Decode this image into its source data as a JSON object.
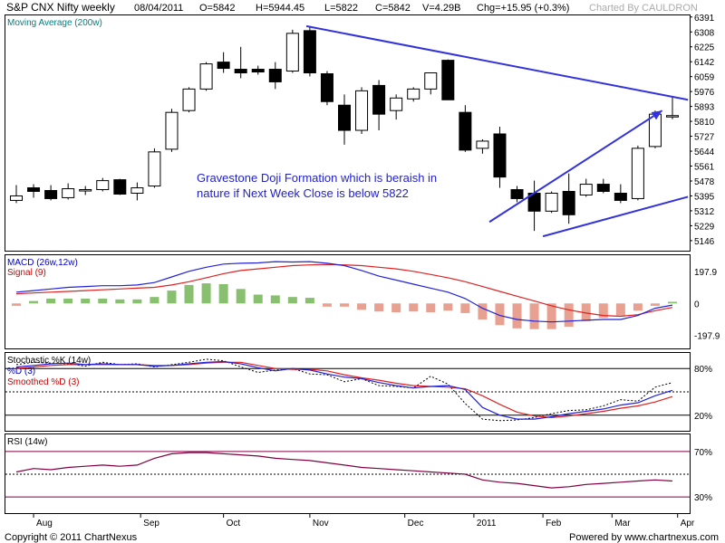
{
  "header": {
    "title": "S&P CNX Nifty weekly",
    "date": "08/04/2011",
    "open": "O=5842",
    "high": "H=5944.45",
    "low": "L=5822",
    "close": "C=5842",
    "volume": "V=4.29B",
    "change": "Chg=+15.95 (+0.3%)",
    "charted_by": "Charted By CAULDRON"
  },
  "footer": {
    "copyright": "Copyright © 2011 ChartNexus",
    "powered_by": "Powered by www.chartnexus.com"
  },
  "annotation": {
    "line1": "Gravestone Doji Formation which is beraish in",
    "line2": "nature if Next Week Close is below 5822"
  },
  "colors": {
    "trendline": "#3333dd",
    "macd": "#2222dd",
    "signal": "#dd2222",
    "hist_pos": "#88c070",
    "hist_neg": "#e8a090",
    "rsi": "#800040",
    "label_blue": "#0000cc",
    "label_red": "#cc0000",
    "legend_teal": "#008080"
  },
  "chart_data": [
    {
      "type": "candlestick",
      "title": "S&P CNX Nifty weekly",
      "legend": "Moving Average (200w)",
      "y_ticks": [
        "6391",
        "6308",
        "6225",
        "6142",
        "6059",
        "5976",
        "5893",
        "5810",
        "5727",
        "5644",
        "5561",
        "5478",
        "5395",
        "5312",
        "5229",
        "5146"
      ],
      "ylim": [
        5090,
        6400
      ],
      "x_ticks": [
        "Aug",
        "Sep",
        "Oct",
        "Nov",
        "Dec",
        "2011",
        "Feb",
        "Mar",
        "Apr"
      ],
      "candles": [
        {
          "o": 5370,
          "h": 5455,
          "l": 5355,
          "c": 5395
        },
        {
          "o": 5440,
          "h": 5460,
          "l": 5385,
          "c": 5420
        },
        {
          "o": 5425,
          "h": 5455,
          "l": 5370,
          "c": 5380
        },
        {
          "o": 5385,
          "h": 5465,
          "l": 5375,
          "c": 5435
        },
        {
          "o": 5430,
          "h": 5450,
          "l": 5400,
          "c": 5430
        },
        {
          "o": 5430,
          "h": 5495,
          "l": 5420,
          "c": 5480
        },
        {
          "o": 5485,
          "h": 5490,
          "l": 5400,
          "c": 5405
        },
        {
          "o": 5410,
          "h": 5470,
          "l": 5370,
          "c": 5440
        },
        {
          "o": 5450,
          "h": 5660,
          "l": 5440,
          "c": 5640
        },
        {
          "o": 5655,
          "h": 5880,
          "l": 5640,
          "c": 5860
        },
        {
          "o": 5870,
          "h": 6000,
          "l": 5860,
          "c": 5990
        },
        {
          "o": 5990,
          "h": 6140,
          "l": 5980,
          "c": 6130
        },
        {
          "o": 6140,
          "h": 6195,
          "l": 6080,
          "c": 6105
        },
        {
          "o": 6100,
          "h": 6225,
          "l": 6050,
          "c": 6080
        },
        {
          "o": 6100,
          "h": 6120,
          "l": 6070,
          "c": 6085
        },
        {
          "o": 6100,
          "h": 6140,
          "l": 5990,
          "c": 6030
        },
        {
          "o": 6090,
          "h": 6320,
          "l": 6080,
          "c": 6300
        },
        {
          "o": 6315,
          "h": 6340,
          "l": 6060,
          "c": 6080
        },
        {
          "o": 6075,
          "h": 6090,
          "l": 5900,
          "c": 5920
        },
        {
          "o": 5900,
          "h": 5960,
          "l": 5680,
          "c": 5760
        },
        {
          "o": 5760,
          "h": 6000,
          "l": 5740,
          "c": 5980
        },
        {
          "o": 6010,
          "h": 6040,
          "l": 5760,
          "c": 5850
        },
        {
          "o": 5870,
          "h": 5960,
          "l": 5820,
          "c": 5940
        },
        {
          "o": 5935,
          "h": 6000,
          "l": 5920,
          "c": 5990
        },
        {
          "o": 5990,
          "h": 6080,
          "l": 5960,
          "c": 6080
        },
        {
          "o": 6150,
          "h": 6155,
          "l": 5930,
          "c": 5930
        },
        {
          "o": 5860,
          "h": 5900,
          "l": 5640,
          "c": 5650
        },
        {
          "o": 5660,
          "h": 5710,
          "l": 5630,
          "c": 5700
        },
        {
          "o": 5740,
          "h": 5780,
          "l": 5440,
          "c": 5500
        },
        {
          "o": 5430,
          "h": 5450,
          "l": 5360,
          "c": 5380
        },
        {
          "o": 5410,
          "h": 5480,
          "l": 5200,
          "c": 5310
        },
        {
          "o": 5310,
          "h": 5420,
          "l": 5300,
          "c": 5410
        },
        {
          "o": 5420,
          "h": 5520,
          "l": 5240,
          "c": 5290
        },
        {
          "o": 5400,
          "h": 5490,
          "l": 5390,
          "c": 5460
        },
        {
          "o": 5460,
          "h": 5490,
          "l": 5410,
          "c": 5420
        },
        {
          "o": 5410,
          "h": 5460,
          "l": 5355,
          "c": 5370
        },
        {
          "o": 5380,
          "h": 5675,
          "l": 5370,
          "c": 5660
        },
        {
          "o": 5670,
          "h": 5870,
          "l": 5660,
          "c": 5850
        },
        {
          "o": 5842,
          "h": 5944.45,
          "l": 5822,
          "c": 5842
        }
      ],
      "trendlines": [
        {
          "label": "resistance",
          "from": {
            "i": 16.8,
            "v": 6340
          },
          "to": {
            "i": 38.9,
            "v": 5930
          }
        },
        {
          "label": "support",
          "from": {
            "i": 30.5,
            "v": 5170
          },
          "to": {
            "i": 38.9,
            "v": 5390
          }
        },
        {
          "label": "channel",
          "from": {
            "i": 27.4,
            "v": 5250
          },
          "to": {
            "i": 37.4,
            "v": 5870
          }
        }
      ]
    },
    {
      "type": "line",
      "title": "MACD (26w,12w)",
      "series_names": [
        "MACD (26w,12w)",
        "Signal (9)"
      ],
      "y_ticks": [
        "197.9",
        "0",
        "-197.9"
      ],
      "ylim": [
        -280,
        300
      ],
      "macd": [
        70,
        80,
        90,
        100,
        105,
        110,
        110,
        115,
        130,
        165,
        200,
        225,
        245,
        250,
        252,
        260,
        258,
        260,
        250,
        235,
        205,
        170,
        145,
        120,
        95,
        70,
        30,
        -30,
        -75,
        -100,
        -110,
        -115,
        -110,
        -105,
        -100,
        -100,
        -75,
        -30,
        -10
      ],
      "signal": [
        60,
        65,
        70,
        75,
        80,
        85,
        90,
        95,
        100,
        115,
        135,
        160,
        185,
        205,
        215,
        225,
        235,
        240,
        242,
        240,
        235,
        225,
        215,
        200,
        180,
        160,
        135,
        105,
        75,
        45,
        15,
        -15,
        -40,
        -60,
        -75,
        -80,
        -70,
        -45,
        -25
      ],
      "histogram": [
        -15,
        15,
        30,
        30,
        30,
        30,
        25,
        25,
        40,
        80,
        115,
        125,
        120,
        90,
        55,
        50,
        40,
        35,
        -20,
        -20,
        -40,
        -50,
        -55,
        -50,
        -55,
        -45,
        -60,
        -100,
        -135,
        -155,
        -160,
        -160,
        -145,
        -110,
        -90,
        -75,
        -45,
        -15,
        10
      ]
    },
    {
      "type": "line",
      "title": "Stochastic %K (14w)",
      "series_names": [
        "Stochastic %K (14w)",
        "%D (3)",
        "Smoothed %D (3)"
      ],
      "y_ticks": [
        "80%",
        "20%"
      ],
      "ylim": [
        0,
        100
      ],
      "k": [
        85,
        88,
        87,
        86,
        83,
        88,
        85,
        86,
        82,
        85,
        88,
        92,
        90,
        82,
        75,
        78,
        80,
        73,
        72,
        63,
        67,
        58,
        57,
        55,
        70,
        60,
        35,
        15,
        13,
        14,
        17,
        22,
        26,
        27,
        32,
        40,
        38,
        56,
        62
      ],
      "d": [
        82,
        84,
        86,
        87,
        85,
        86,
        85,
        85,
        83,
        84,
        86,
        88,
        89,
        86,
        81,
        77,
        80,
        78,
        73,
        69,
        67,
        62,
        58,
        55,
        57,
        58,
        53,
        30,
        20,
        15,
        15,
        18,
        22,
        25,
        28,
        33,
        36,
        45,
        52
      ],
      "smoothed_d": [
        80,
        82,
        84,
        85,
        85,
        85,
        85,
        85,
        84,
        84,
        85,
        87,
        88,
        88,
        84,
        80,
        79,
        79,
        77,
        72,
        68,
        65,
        61,
        58,
        57,
        56,
        54,
        45,
        34,
        24,
        19,
        17,
        19,
        22,
        25,
        29,
        32,
        37,
        44
      ]
    },
    {
      "type": "line",
      "title": "RSI (14w)",
      "series_names": [
        "RSI (14w)"
      ],
      "y_ticks": [
        "70%",
        "30%"
      ],
      "ylim": [
        15,
        85
      ],
      "values": [
        52,
        55,
        54,
        56,
        57,
        58,
        57,
        58,
        64,
        68,
        69,
        69,
        68,
        67,
        66,
        64,
        63,
        62,
        60,
        58,
        56,
        55,
        54,
        53,
        52,
        51,
        50,
        45,
        43,
        42,
        40,
        38,
        39,
        41,
        42,
        43,
        44,
        45,
        44
      ]
    }
  ]
}
